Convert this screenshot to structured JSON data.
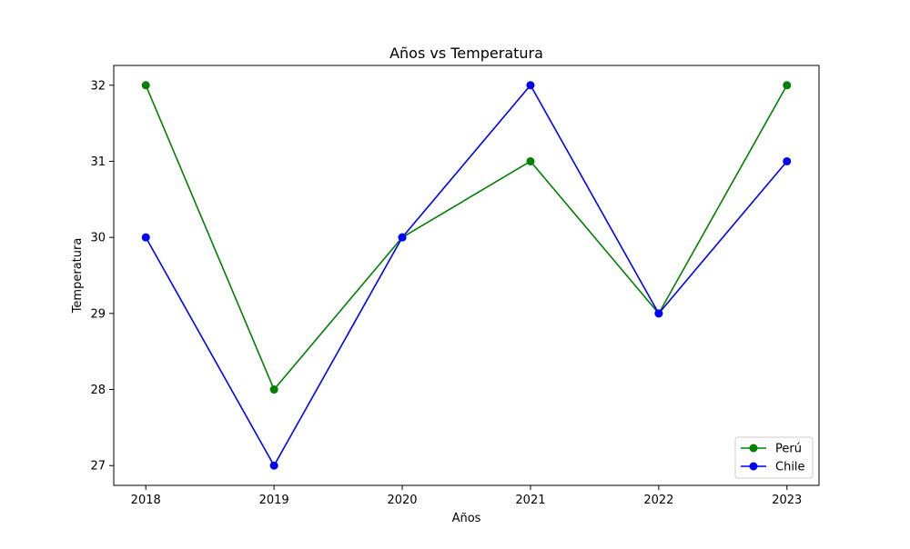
{
  "chart_data": {
    "type": "line",
    "title": "Años vs Temperatura",
    "xlabel": "Años",
    "ylabel": "Temperatura",
    "categories": [
      "2018",
      "2019",
      "2020",
      "2021",
      "2022",
      "2023"
    ],
    "x": [
      2018,
      2019,
      2020,
      2021,
      2022,
      2023
    ],
    "xlim": [
      2017.75,
      2023.25
    ],
    "ylim": [
      26.74,
      32.26
    ],
    "yticks": [
      27,
      28,
      29,
      30,
      31,
      32
    ],
    "grid": false,
    "legend_position": "lower-right",
    "series": [
      {
        "name": "Perú",
        "color": "#008000",
        "marker": "circle",
        "values": [
          32,
          28,
          30,
          31,
          29,
          32
        ]
      },
      {
        "name": "Chile",
        "color": "#0000ff",
        "marker": "circle",
        "values": [
          30,
          27,
          30,
          32,
          29,
          31
        ]
      }
    ]
  }
}
